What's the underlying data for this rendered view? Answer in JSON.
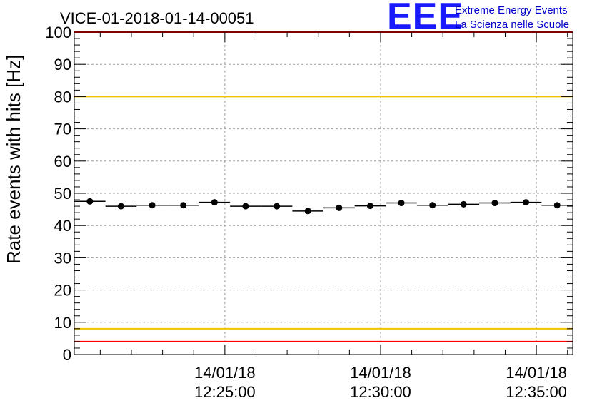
{
  "chart_data": {
    "type": "scatter",
    "title": "VICE-01-2018-01-14-00051",
    "ylabel": "Rate events with hits [Hz]",
    "xlabel": "",
    "ylim": [
      0,
      100
    ],
    "xlim": [
      "2018-01-14 12:20:10",
      "2018-01-14 12:36:10"
    ],
    "yticks": [
      "0",
      "10",
      "20",
      "30",
      "40",
      "50",
      "60",
      "70",
      "80",
      "90",
      "100"
    ],
    "xticks": [
      {
        "t": "2018-01-14 12:25:00",
        "date": "14/01/18",
        "time": "12:25:00"
      },
      {
        "t": "2018-01-14 12:30:00",
        "date": "14/01/18",
        "time": "12:30:00"
      },
      {
        "t": "2018-01-14 12:35:00",
        "date": "14/01/18",
        "time": "12:35:00"
      }
    ],
    "grid": true,
    "bin_width_seconds": 60,
    "points": [
      {
        "x": "2018-01-14 12:20:40",
        "y": 47.5
      },
      {
        "x": "2018-01-14 12:21:40",
        "y": 46.0
      },
      {
        "x": "2018-01-14 12:22:40",
        "y": 46.3
      },
      {
        "x": "2018-01-14 12:23:40",
        "y": 46.3
      },
      {
        "x": "2018-01-14 12:24:40",
        "y": 47.2
      },
      {
        "x": "2018-01-14 12:25:40",
        "y": 46.0
      },
      {
        "x": "2018-01-14 12:26:40",
        "y": 46.0
      },
      {
        "x": "2018-01-14 12:27:40",
        "y": 44.5
      },
      {
        "x": "2018-01-14 12:28:40",
        "y": 45.5
      },
      {
        "x": "2018-01-14 12:29:40",
        "y": 46.1
      },
      {
        "x": "2018-01-14 12:30:40",
        "y": 47.0
      },
      {
        "x": "2018-01-14 12:31:40",
        "y": 46.3
      },
      {
        "x": "2018-01-14 12:32:40",
        "y": 46.6
      },
      {
        "x": "2018-01-14 12:33:40",
        "y": 47.0
      },
      {
        "x": "2018-01-14 12:34:40",
        "y": 47.2
      },
      {
        "x": "2018-01-14 12:35:40",
        "y": 46.3
      }
    ],
    "reference_lines": [
      {
        "y": 100,
        "color": "#ff0000"
      },
      {
        "y": 80,
        "color": "#f2c200"
      },
      {
        "y": 8,
        "color": "#f2c200"
      },
      {
        "y": 4,
        "color": "#ff0000"
      }
    ]
  },
  "logo": {
    "mark": "EEE",
    "line1": "Extreme Energy Events",
    "line2": "La Scienza nelle Scuole",
    "color": "#1a1aff"
  }
}
